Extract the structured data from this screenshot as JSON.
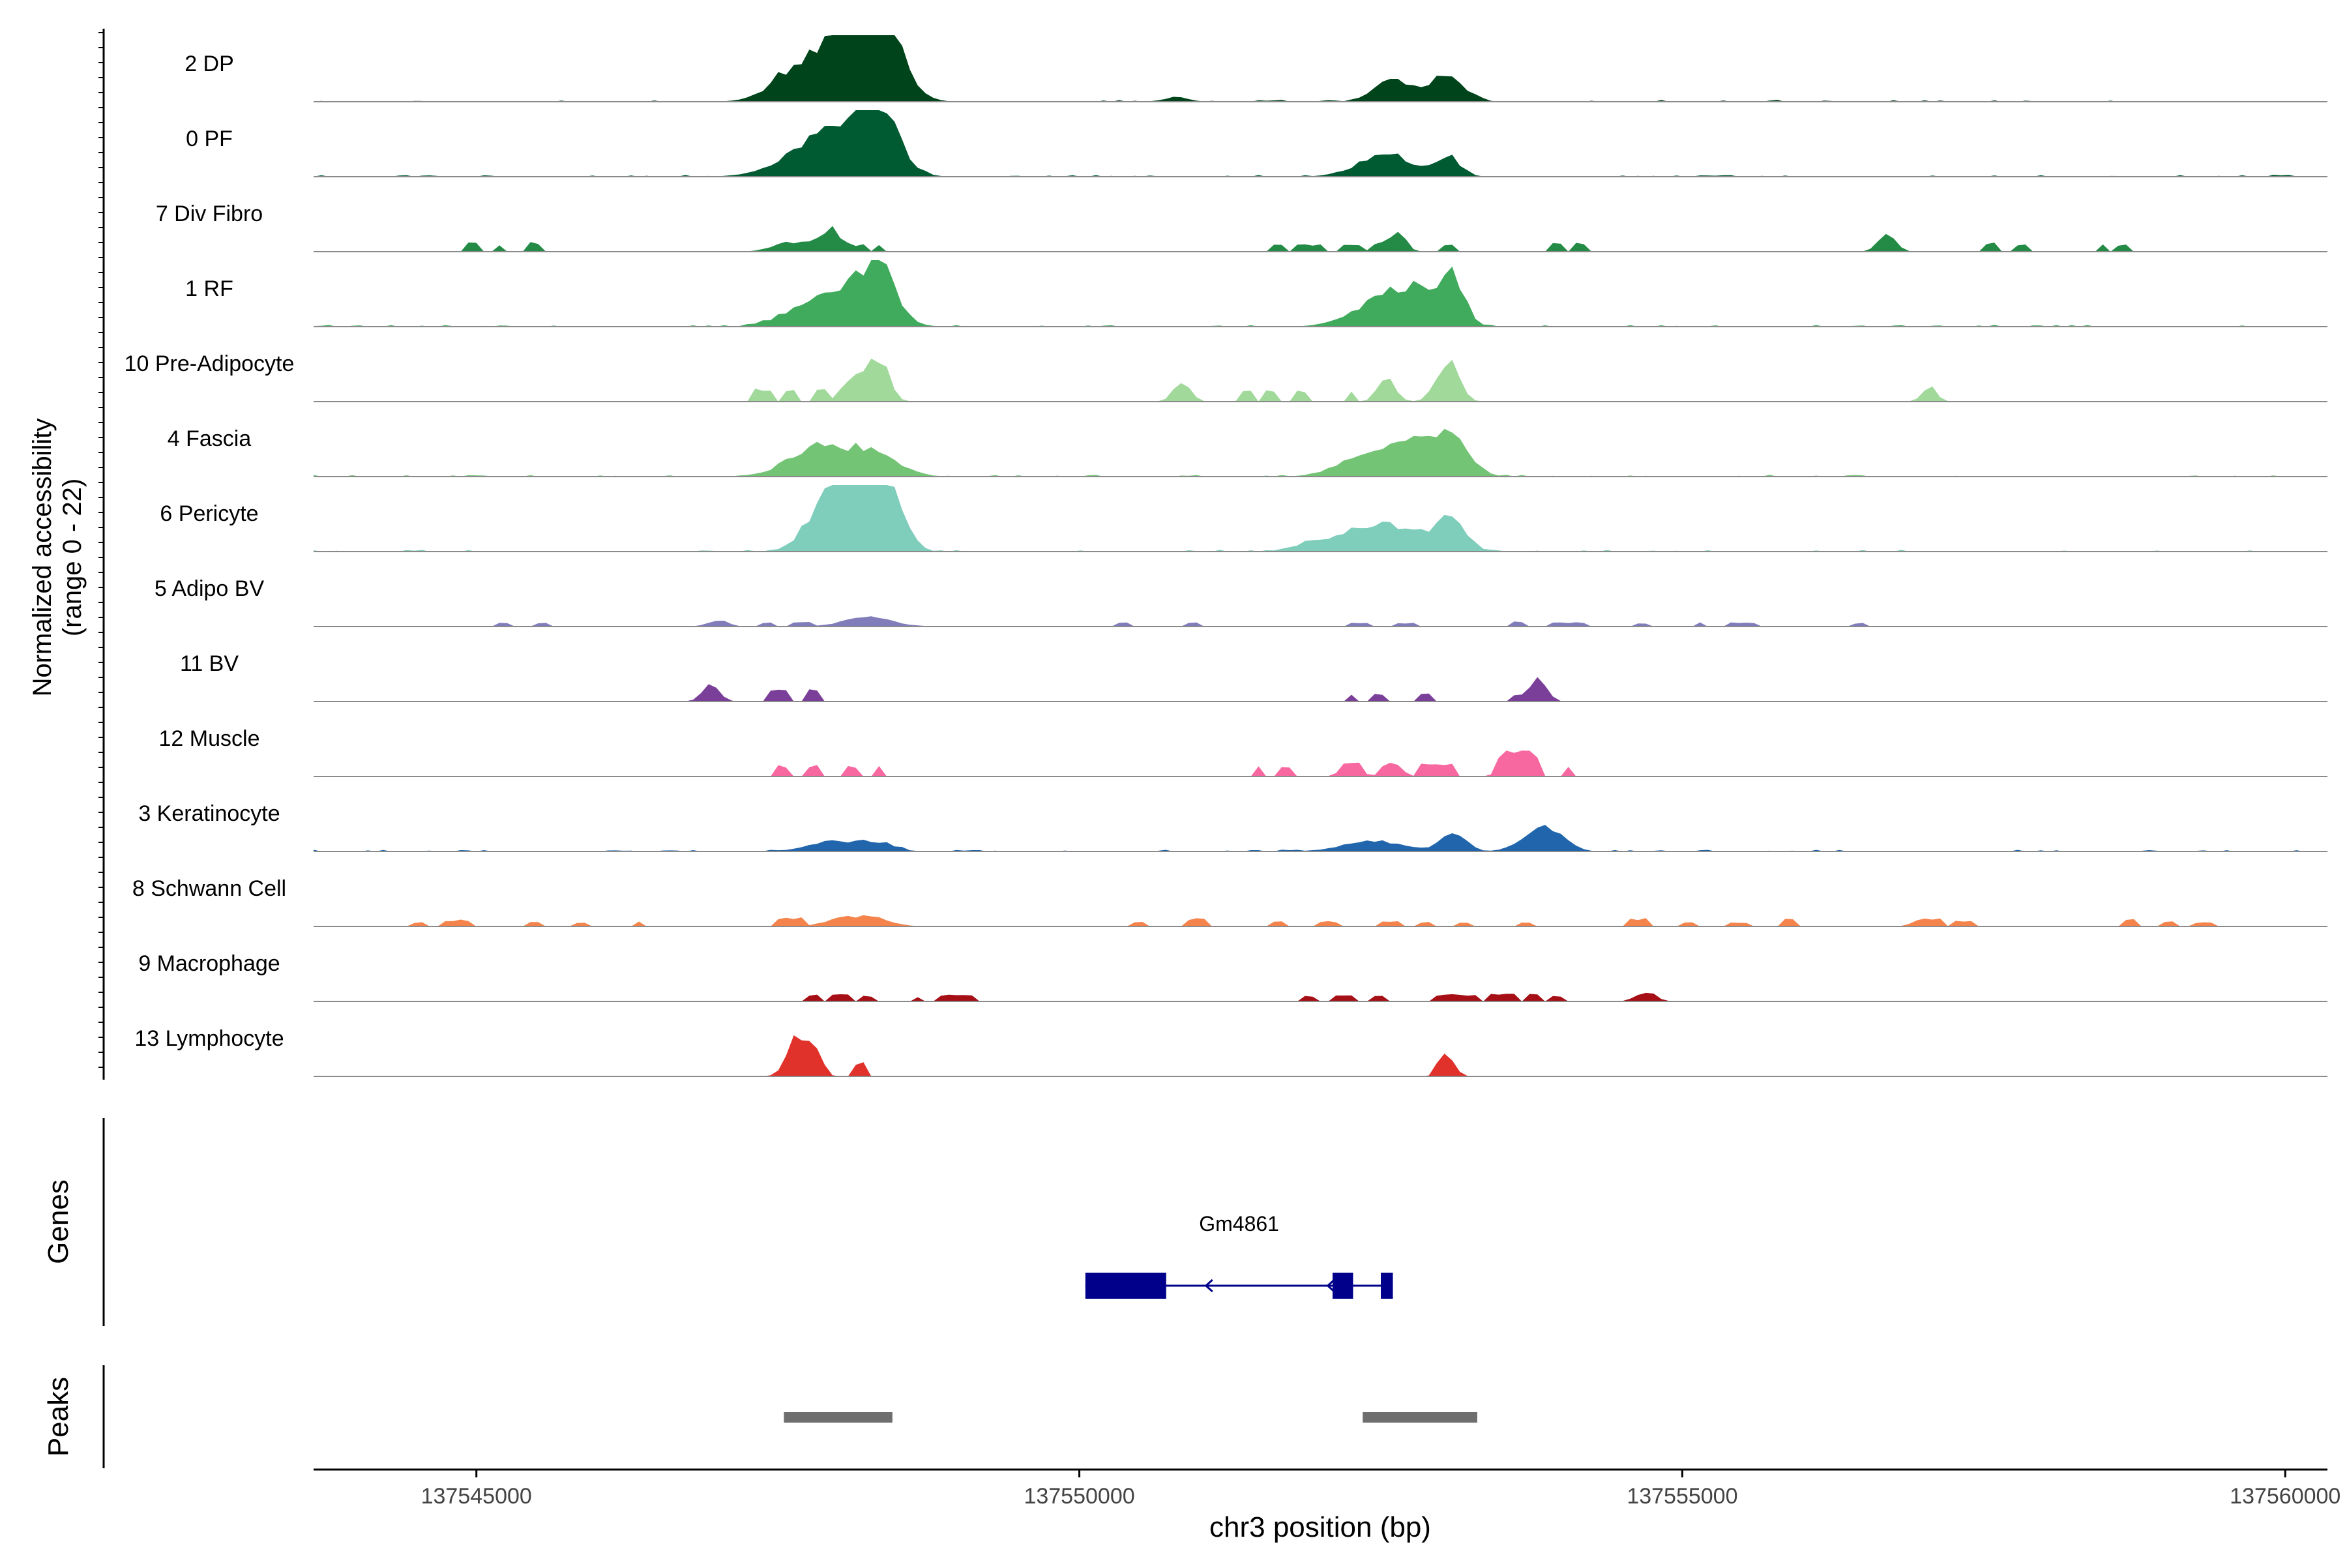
{
  "chart_data": {
    "type": "area",
    "title": "",
    "chromosome": "chr3",
    "xlabel": "chr3 position (bp)",
    "ylabel_line1": "Normalized accessibility",
    "ylabel_line2": "(range 0 - 22)",
    "y_range": [
      0,
      22
    ],
    "xlim": [
      137543650,
      137560350
    ],
    "x_ticks": [
      137545000,
      137550000,
      137555000,
      137560000
    ],
    "x_tick_labels": [
      "137545000",
      "137550000",
      "137555000",
      "137560000"
    ],
    "tracks": [
      {
        "name": "2 DP",
        "color": "#00441b",
        "style": "dense",
        "peaks": [
          [
            137547830,
            0.45,
            270
          ],
          [
            137548100,
            0.55,
            250
          ],
          [
            137548250,
            0.95,
            180
          ],
          [
            137548350,
            0.65,
            180
          ],
          [
            137547500,
            0.12,
            120
          ],
          [
            137552600,
            0.32,
            150
          ],
          [
            137553050,
            0.4,
            140
          ],
          [
            137550800,
            0.07,
            100
          ]
        ]
      },
      {
        "name": "0 PF",
        "color": "#005a32",
        "style": "dense",
        "peaks": [
          [
            137547800,
            0.4,
            280
          ],
          [
            137548150,
            0.55,
            240
          ],
          [
            137548350,
            0.75,
            150
          ],
          [
            137552350,
            0.12,
            180
          ],
          [
            137552600,
            0.28,
            180
          ],
          [
            137553050,
            0.32,
            100
          ]
        ]
      },
      {
        "name": "7 Div Fibro",
        "color": "#238b45",
        "style": "sparse",
        "peaks": [
          [
            137547550,
            0.12,
            120
          ],
          [
            137547800,
            0.14,
            110
          ],
          [
            137547950,
            0.3,
            60
          ],
          [
            137548100,
            0.1,
            80
          ],
          [
            137552650,
            0.3,
            60
          ],
          [
            137552500,
            0.14,
            60
          ],
          [
            137556700,
            0.3,
            70
          ]
        ],
        "blocks": [
          [
            137544900,
            137545000,
            0.13
          ],
          [
            137545150,
            137545250,
            0.1
          ],
          [
            137545400,
            137545550,
            0.13
          ],
          [
            137548150,
            137548250,
            0.1
          ],
          [
            137548300,
            137548400,
            0.1
          ],
          [
            137551600,
            137551700,
            0.1
          ],
          [
            137551800,
            137552000,
            0.1
          ],
          [
            137552150,
            137552350,
            0.1
          ],
          [
            137553000,
            137553150,
            0.1
          ],
          [
            137553900,
            137554000,
            0.12
          ],
          [
            137554100,
            137554200,
            0.12
          ],
          [
            137557500,
            137557600,
            0.12
          ],
          [
            137557750,
            137557850,
            0.1
          ],
          [
            137558450,
            137558550,
            0.1
          ],
          [
            137558600,
            137558700,
            0.1
          ]
        ]
      },
      {
        "name": "1 RF",
        "color": "#41ab5d",
        "style": "dense",
        "peaks": [
          [
            137547650,
            0.12,
            200
          ],
          [
            137547950,
            0.35,
            240
          ],
          [
            137548250,
            0.42,
            200
          ],
          [
            137548350,
            0.58,
            120
          ],
          [
            137552350,
            0.2,
            200
          ],
          [
            137552650,
            0.4,
            200
          ],
          [
            137552850,
            0.3,
            150
          ],
          [
            137553100,
            0.68,
            100
          ]
        ]
      },
      {
        "name": "10 Pre-Adipocyte",
        "color": "#a1d99b",
        "style": "sparse",
        "peaks": [
          [
            137548100,
            0.3,
            80
          ],
          [
            137548350,
            0.52,
            80
          ],
          [
            137548250,
            0.3,
            80
          ],
          [
            137550850,
            0.28,
            70
          ],
          [
            137552550,
            0.38,
            70
          ],
          [
            137553050,
            0.62,
            90
          ],
          [
            137557050,
            0.22,
            60
          ]
        ],
        "blocks": [
          [
            137547300,
            137547450,
            0.18
          ],
          [
            137547550,
            137547650,
            0.18
          ],
          [
            137547800,
            137547950,
            0.18
          ],
          [
            137548250,
            137548450,
            0.2
          ],
          [
            137551350,
            137551450,
            0.15
          ],
          [
            137551550,
            137551650,
            0.15
          ],
          [
            137551800,
            137551900,
            0.15
          ],
          [
            137552200,
            137552300,
            0.15
          ]
        ]
      },
      {
        "name": "4 Fascia",
        "color": "#74c476",
        "style": "dense",
        "peaks": [
          [
            137547650,
            0.16,
            200
          ],
          [
            137547900,
            0.36,
            200
          ],
          [
            137548300,
            0.34,
            200
          ],
          [
            137552250,
            0.14,
            200
          ],
          [
            137552600,
            0.4,
            230
          ],
          [
            137552850,
            0.25,
            150
          ],
          [
            137553100,
            0.58,
            140
          ]
        ]
      },
      {
        "name": "6 Pericyte",
        "color": "#7fcdbb",
        "style": "dense",
        "peaks": [
          [
            137547800,
            0.32,
            140
          ],
          [
            137548000,
            0.55,
            160
          ],
          [
            137548150,
            0.95,
            150
          ],
          [
            137548350,
            0.75,
            140
          ],
          [
            137548500,
            0.3,
            100
          ],
          [
            137551900,
            0.1,
            150
          ],
          [
            137552300,
            0.28,
            200
          ],
          [
            137552700,
            0.33,
            230
          ],
          [
            137553100,
            0.46,
            110
          ]
        ]
      },
      {
        "name": "5 Adipo BV",
        "color": "#807dba",
        "style": "sparse",
        "peaks": [
          [
            137548250,
            0.14,
            200
          ],
          [
            137547000,
            0.1,
            80
          ]
        ],
        "blocks": [
          [
            137545150,
            137545300,
            0.05
          ],
          [
            137545500,
            137545600,
            0.05
          ],
          [
            137547350,
            137547450,
            0.06
          ],
          [
            137547600,
            137547800,
            0.06
          ],
          [
            137550300,
            137550400,
            0.06
          ],
          [
            137550900,
            137551000,
            0.06
          ],
          [
            137552200,
            137552400,
            0.05
          ],
          [
            137552600,
            137552800,
            0.05
          ],
          [
            137553600,
            137553700,
            0.07
          ],
          [
            137553900,
            137554200,
            0.06
          ],
          [
            137554600,
            137554700,
            0.05
          ],
          [
            137555100,
            137555200,
            0.06
          ],
          [
            137555400,
            137555600,
            0.06
          ],
          [
            137556400,
            137556550,
            0.05
          ]
        ]
      },
      {
        "name": "11 BV",
        "color": "#7a3f98",
        "style": "sparse",
        "peaks": [
          [
            137546950,
            0.25,
            70
          ],
          [
            137553800,
            0.35,
            70
          ]
        ],
        "blocks": [
          [
            137546850,
            137547050,
            0.13
          ],
          [
            137547400,
            137547600,
            0.16
          ],
          [
            137547750,
            137547850,
            0.16
          ],
          [
            137552200,
            137552300,
            0.1
          ],
          [
            137552400,
            137552550,
            0.1
          ],
          [
            137552800,
            137552950,
            0.12
          ],
          [
            137553600,
            137553700,
            0.1
          ],
          [
            137553750,
            137553900,
            0.22
          ]
        ]
      },
      {
        "name": "12 Muscle",
        "color": "#f768a1",
        "style": "sparse",
        "peaks": [
          [
            137553550,
            0.4,
            60
          ],
          [
            137553700,
            0.4,
            60
          ],
          [
            137552250,
            0.22,
            70
          ],
          [
            137552600,
            0.2,
            70
          ]
        ],
        "blocks": [
          [
            137547500,
            137547600,
            0.15
          ],
          [
            137547750,
            137547850,
            0.15
          ],
          [
            137548050,
            137548200,
            0.15
          ],
          [
            137548300,
            137548400,
            0.15
          ],
          [
            137551450,
            137551550,
            0.15
          ],
          [
            137551650,
            137551800,
            0.15
          ],
          [
            137552150,
            137552350,
            0.2
          ],
          [
            137552500,
            137552700,
            0.15
          ],
          [
            137552800,
            137553150,
            0.17
          ],
          [
            137553450,
            137553800,
            0.28
          ],
          [
            137554000,
            137554100,
            0.14
          ]
        ]
      },
      {
        "name": "3 Keratinocyte",
        "color": "#2166ac",
        "style": "dense",
        "peaks": [
          [
            137547950,
            0.14,
            200
          ],
          [
            137548300,
            0.12,
            150
          ],
          [
            137552450,
            0.16,
            250
          ],
          [
            137553100,
            0.3,
            100
          ],
          [
            137553800,
            0.25,
            150
          ],
          [
            137553950,
            0.16,
            120
          ]
        ]
      },
      {
        "name": "8 Schwann Cell",
        "color": "#f4844c",
        "style": "sparse",
        "peaks": [
          [
            137548050,
            0.12,
            150
          ],
          [
            137548300,
            0.1,
            150
          ],
          [
            137557000,
            0.12,
            80
          ]
        ],
        "blocks": [
          [
            137544450,
            137544600,
            0.06
          ],
          [
            137544700,
            137544950,
            0.09
          ],
          [
            137545400,
            137545550,
            0.07
          ],
          [
            137545800,
            137545900,
            0.06
          ],
          [
            137546300,
            137546400,
            0.07
          ],
          [
            137547500,
            137547700,
            0.12
          ],
          [
            137548000,
            137548400,
            0.14
          ],
          [
            137550450,
            137550550,
            0.07
          ],
          [
            137550900,
            137551050,
            0.11
          ],
          [
            137551600,
            137551700,
            0.07
          ],
          [
            137551950,
            137552150,
            0.07
          ],
          [
            137552500,
            137552700,
            0.08
          ],
          [
            137552800,
            137552950,
            0.06
          ],
          [
            137553100,
            137553250,
            0.06
          ],
          [
            137553650,
            137553750,
            0.06
          ],
          [
            137554550,
            137554750,
            0.11
          ],
          [
            137555000,
            137555100,
            0.06
          ],
          [
            137555400,
            137555550,
            0.06
          ],
          [
            137555800,
            137555950,
            0.11
          ],
          [
            137556950,
            137557200,
            0.12
          ],
          [
            137557250,
            137557400,
            0.08
          ],
          [
            137558650,
            137558800,
            0.1
          ],
          [
            137558950,
            137559100,
            0.07
          ],
          [
            137559250,
            137559400,
            0.06
          ]
        ]
      },
      {
        "name": "9 Macrophage",
        "color": "#a50f15",
        "style": "sparse",
        "peaks": [
          [
            137554700,
            0.14,
            80
          ]
        ],
        "blocks": [
          [
            137547750,
            137547850,
            0.1
          ],
          [
            137547950,
            137548100,
            0.1
          ],
          [
            137548150,
            137548300,
            0.08
          ],
          [
            137548600,
            137548700,
            0.07
          ],
          [
            137548850,
            137549150,
            0.09
          ],
          [
            137551850,
            137551950,
            0.08
          ],
          [
            137552100,
            137552300,
            0.1
          ],
          [
            137552400,
            137552550,
            0.08
          ],
          [
            137552900,
            137553300,
            0.1
          ],
          [
            137553350,
            137553650,
            0.1
          ],
          [
            137553700,
            137553850,
            0.1
          ],
          [
            137553900,
            137554000,
            0.07
          ]
        ]
      },
      {
        "name": "13 Lymphocyte",
        "color": "#e0322b",
        "style": "sparse",
        "peaks": [
          [
            137547650,
            0.55,
            80
          ],
          [
            137547800,
            0.45,
            60
          ],
          [
            137553050,
            0.35,
            60
          ]
        ],
        "blocks": [
          [
            137547550,
            137547850,
            0.28
          ],
          [
            137548100,
            137548250,
            0.2
          ],
          [
            137552950,
            137553150,
            0.2
          ]
        ]
      }
    ],
    "genes": [
      {
        "name": "Gm4861",
        "strand": "-",
        "start": 137550050,
        "end": 137552600,
        "exons": [
          [
            137550050,
            137550720
          ],
          [
            137552100,
            137552270
          ],
          [
            137552500,
            137552600
          ]
        ],
        "arrows": [
          137551050,
          137552060
        ]
      }
    ],
    "peaks_track": [
      [
        137547550,
        137548450
      ],
      [
        137552350,
        137553300
      ]
    ],
    "side_labels": {
      "genes": "Genes",
      "peaks": "Peaks"
    }
  }
}
